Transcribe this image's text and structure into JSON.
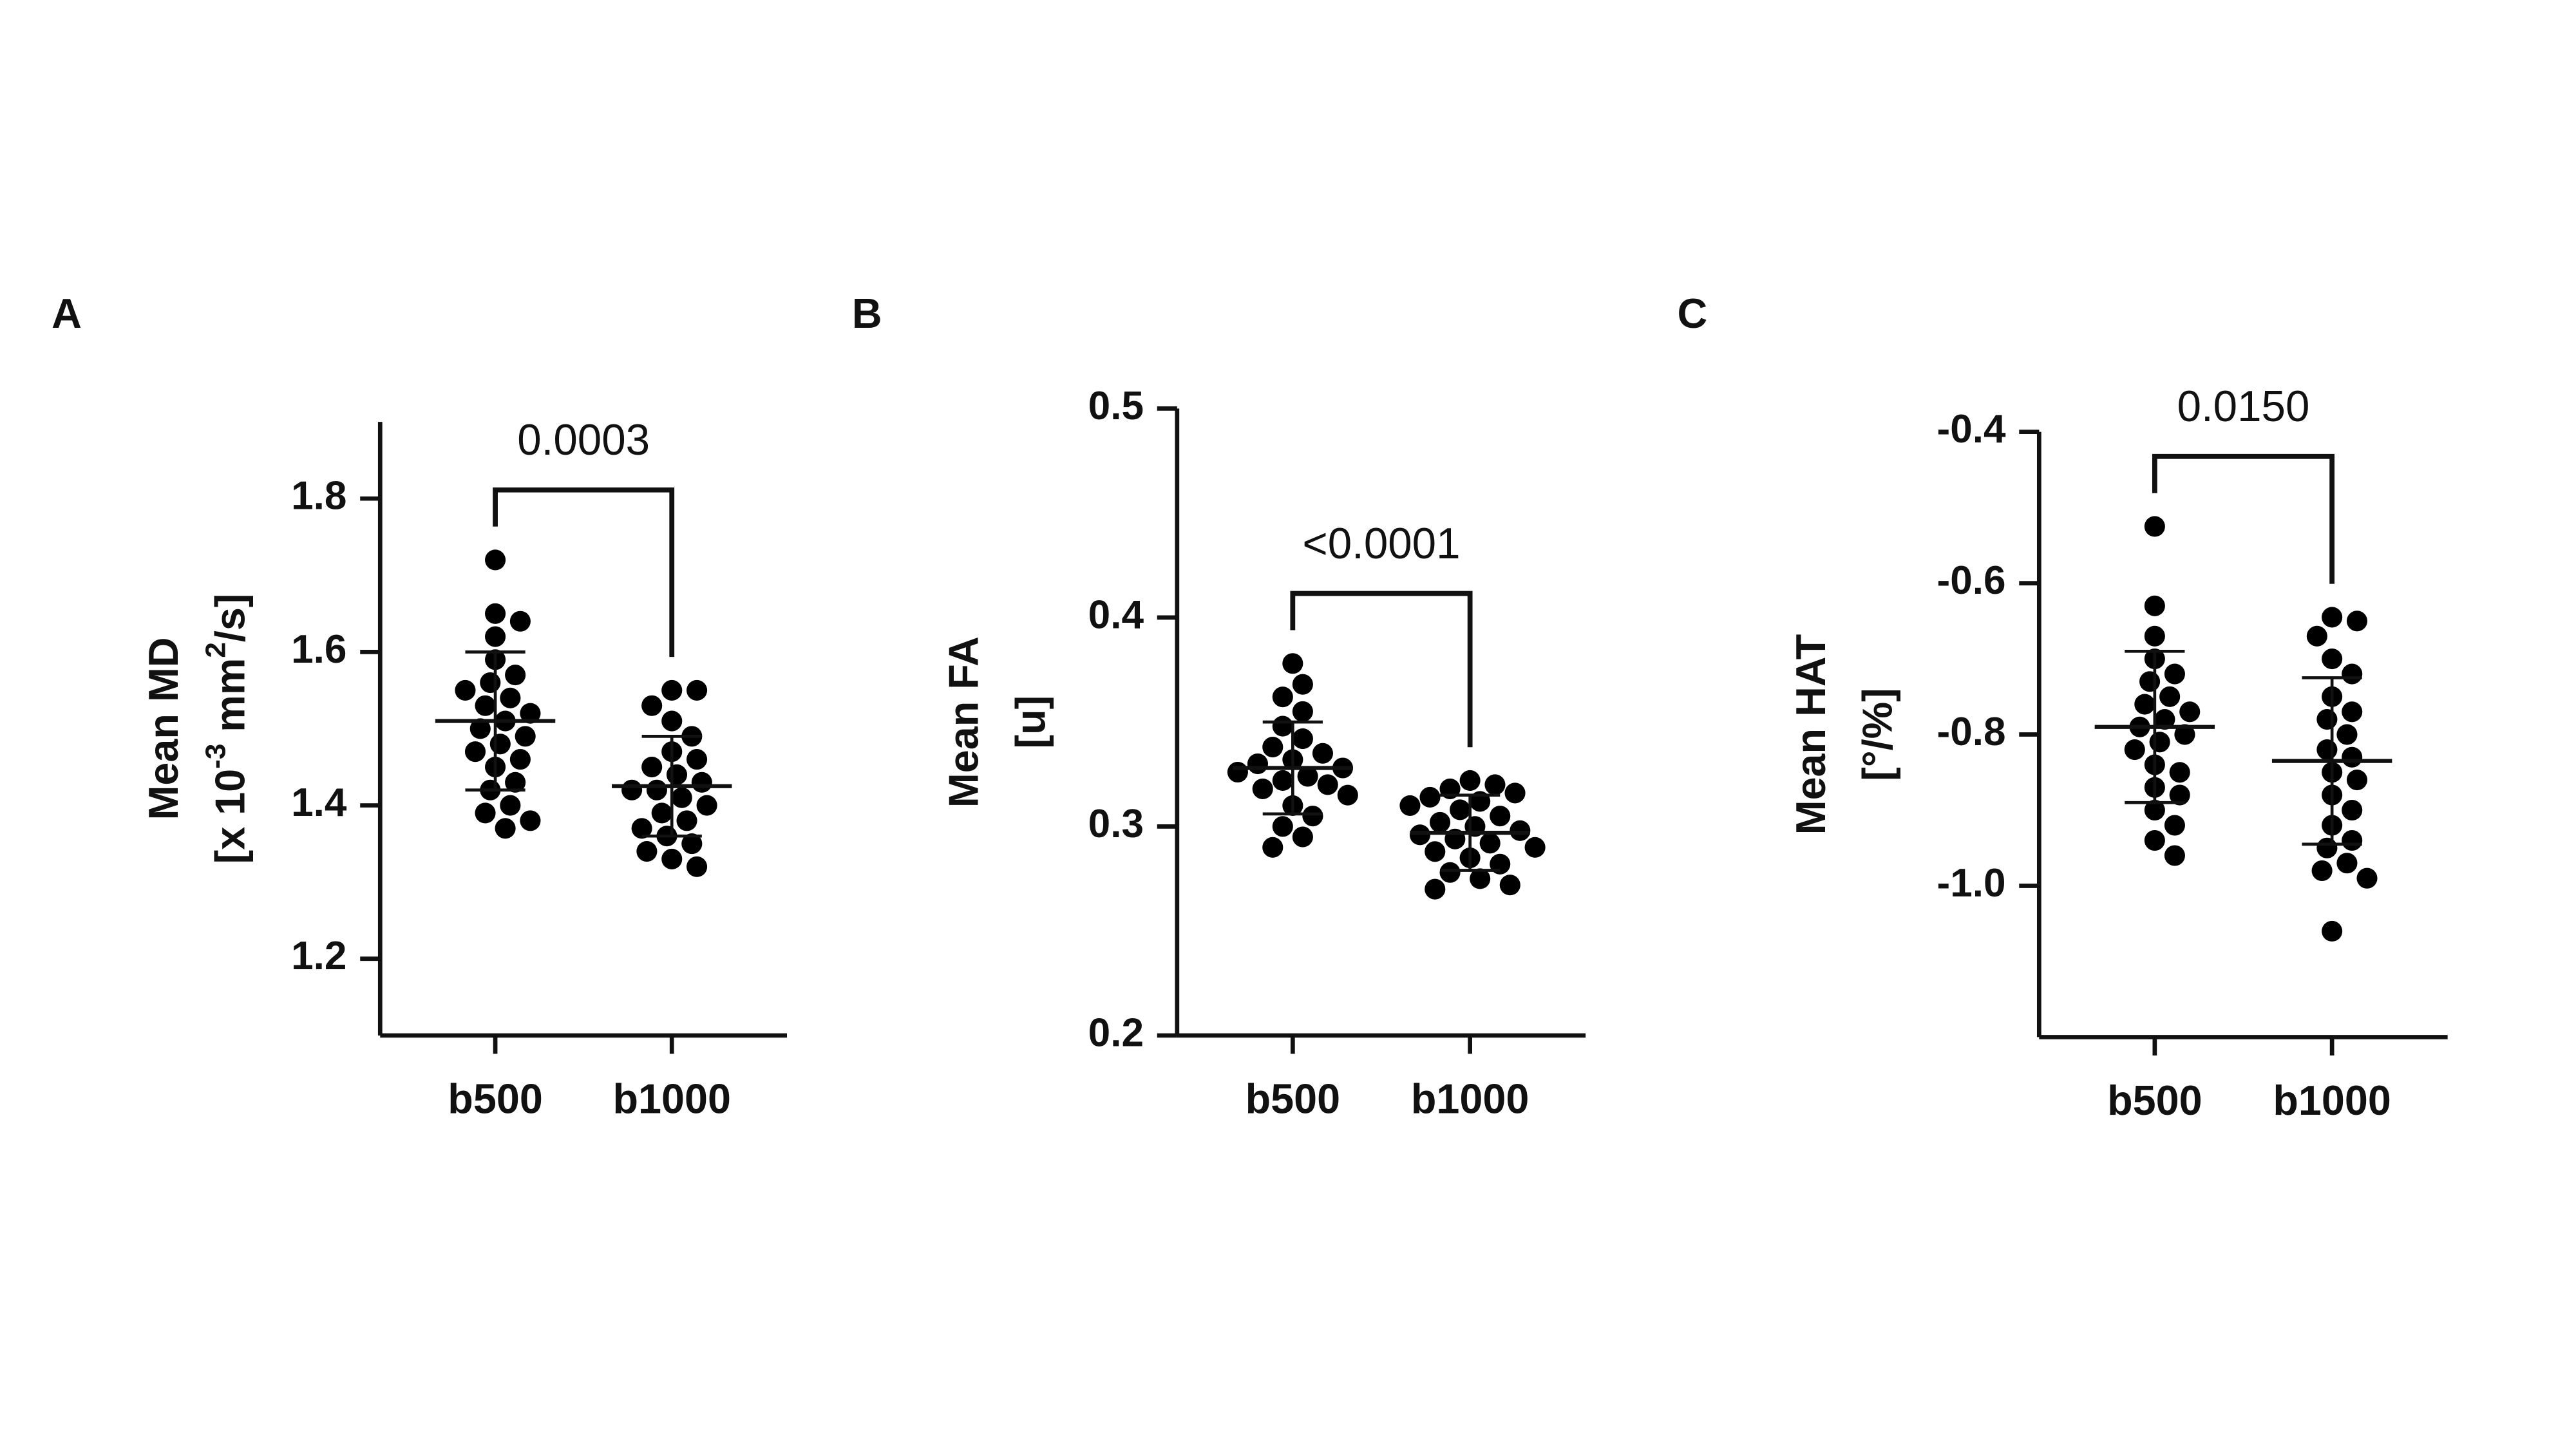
{
  "chart_data": [
    {
      "type": "strip",
      "panel": "A",
      "ylabel": [
        "Mean MD",
        [
          {
            "text": "[x 10"
          },
          {
            "text": "-3",
            "sup": true
          },
          {
            "text": " mm"
          },
          {
            "text": "2",
            "sup": true
          },
          {
            "text": "/s]"
          }
        ]
      ],
      "categories": [
        "b500",
        "b1000"
      ],
      "values": [
        [
          1.72,
          1.65,
          1.64,
          1.62,
          1.59,
          1.57,
          1.56,
          1.55,
          1.54,
          1.53,
          1.52,
          1.51,
          1.5,
          1.49,
          1.48,
          1.47,
          1.46,
          1.45,
          1.43,
          1.42,
          1.4,
          1.39,
          1.38,
          1.37
        ],
        [
          1.55,
          1.55,
          1.53,
          1.51,
          1.49,
          1.47,
          1.46,
          1.45,
          1.44,
          1.43,
          1.42,
          1.42,
          1.41,
          1.4,
          1.39,
          1.38,
          1.37,
          1.36,
          1.35,
          1.34,
          1.33,
          1.32
        ]
      ],
      "means": [
        1.51,
        1.425
      ],
      "sd": [
        0.09,
        0.065
      ],
      "annotation": "0.0003",
      "color": "#000000",
      "ylim": [
        1.1,
        1.9
      ],
      "yticks": [
        1.2,
        1.4,
        1.6,
        1.8
      ]
    },
    {
      "type": "strip",
      "panel": "B",
      "ylabel": [
        "Mean FA",
        "[u]"
      ],
      "categories": [
        "b500",
        "b1000"
      ],
      "values": [
        [
          0.378,
          0.368,
          0.362,
          0.355,
          0.348,
          0.342,
          0.338,
          0.335,
          0.332,
          0.33,
          0.328,
          0.326,
          0.324,
          0.322,
          0.32,
          0.318,
          0.315,
          0.31,
          0.305,
          0.3,
          0.295,
          0.29
        ],
        [
          0.322,
          0.32,
          0.318,
          0.316,
          0.314,
          0.312,
          0.31,
          0.308,
          0.305,
          0.302,
          0.3,
          0.298,
          0.296,
          0.294,
          0.292,
          0.29,
          0.288,
          0.285,
          0.282,
          0.278,
          0.275,
          0.272,
          0.27
        ]
      ],
      "means": [
        0.328,
        0.297
      ],
      "sd": [
        0.022,
        0.018
      ],
      "annotation": "<0.0001",
      "color": "#000000",
      "ylim": [
        0.2,
        0.5
      ],
      "yticks": [
        0.2,
        0.3,
        0.4,
        0.5
      ]
    },
    {
      "type": "strip",
      "panel": "C",
      "ylabel": [
        "Mean HAT",
        "[°/%]"
      ],
      "categories": [
        "b500",
        "b1000"
      ],
      "values": [
        [
          -0.525,
          -0.63,
          -0.67,
          -0.7,
          -0.72,
          -0.73,
          -0.75,
          -0.76,
          -0.77,
          -0.78,
          -0.79,
          -0.8,
          -0.81,
          -0.82,
          -0.84,
          -0.85,
          -0.87,
          -0.88,
          -0.9,
          -0.92,
          -0.94,
          -0.96
        ],
        [
          -0.645,
          -0.65,
          -0.67,
          -0.7,
          -0.72,
          -0.75,
          -0.77,
          -0.78,
          -0.8,
          -0.82,
          -0.83,
          -0.85,
          -0.86,
          -0.88,
          -0.9,
          -0.92,
          -0.94,
          -0.95,
          -0.97,
          -0.98,
          -0.99,
          -1.06
        ]
      ],
      "means": [
        -0.79,
        -0.835
      ],
      "sd": [
        0.1,
        0.11
      ],
      "annotation": "0.0150",
      "color": "#000000",
      "ylim": [
        -1.2,
        -0.4
      ],
      "yticks": [
        -0.4,
        -0.6,
        -0.8,
        {
          "value": -1,
          "label": "-1.0"
        }
      ]
    }
  ]
}
